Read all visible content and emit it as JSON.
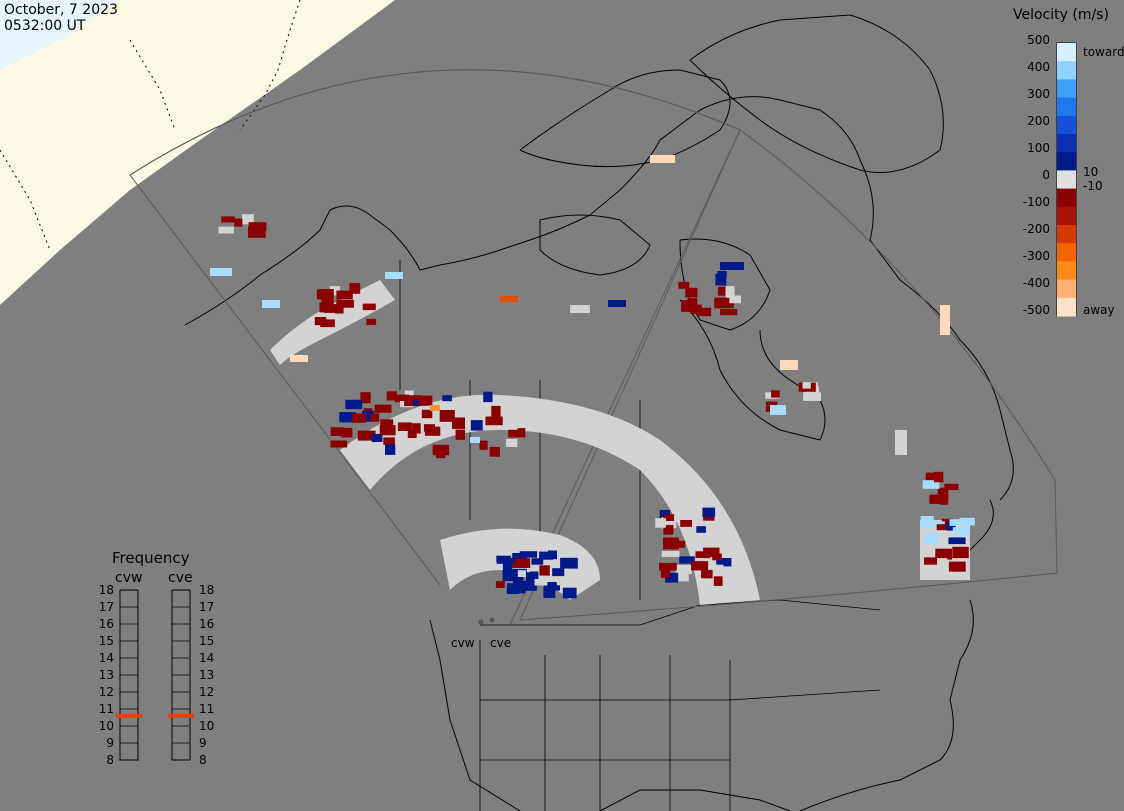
{
  "header": {
    "date": "October, 7 2023",
    "time": "0532:00 UT"
  },
  "velocity_scale": {
    "title": "Velocity (m/s)",
    "ticks": [
      "500",
      "400",
      "300",
      "200",
      "100",
      "0",
      "-100",
      "-200",
      "-300",
      "-400",
      "-500"
    ],
    "inner_labels": [
      "10",
      "-10"
    ],
    "toward_label": "toward",
    "away_label": "away",
    "colors": [
      "#ffe3c8",
      "#ffb070",
      "#ff8a1a",
      "#f26500",
      "#d23a00",
      "#a51208",
      "#8a0000",
      "#e0e0e0",
      "#001a8a",
      "#0a2fb0",
      "#1450d8",
      "#1e78ee",
      "#3ea0ff",
      "#8fd2ff",
      "#d6f0ff"
    ]
  },
  "frequency": {
    "title": "Frequency",
    "left_radar": "cvw",
    "right_radar": "cve",
    "levels": [
      "18",
      "17",
      "16",
      "15",
      "14",
      "13",
      "12",
      "11",
      "10",
      "9",
      "8"
    ],
    "cvw_mhz": 10.6,
    "cve_mhz": 10.6,
    "marker_color": "#e84000"
  },
  "radars": {
    "west_label": "cvw",
    "east_label": "cve"
  },
  "map_colors": {
    "background": "#7f7f7f",
    "daylight": "#fbf8e3",
    "daylight_edge": "#e6f5fc",
    "land_outline": "#000000",
    "ground_scatter": "#d3d3d3",
    "fov_line": "#5a5a5a"
  }
}
